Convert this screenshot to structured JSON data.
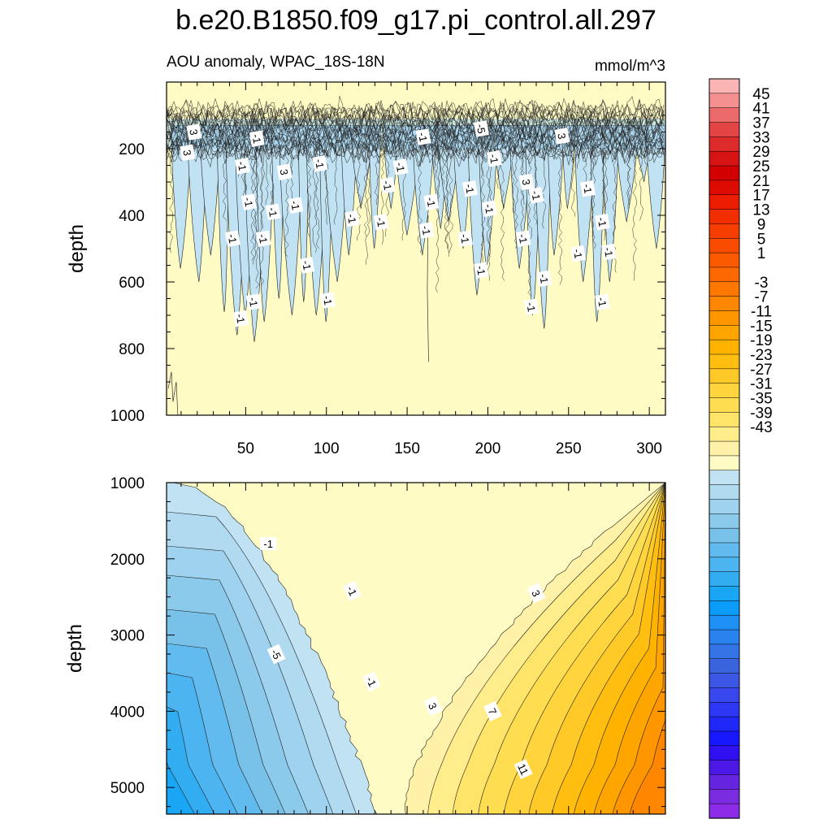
{
  "chart_data": {
    "type": "contour",
    "title": "b.e20.B1850.f09_g17.pi_control.all.297",
    "subtitle_left": "AOU anomaly, WPAC_18S-18N",
    "subtitle_right": "mmol/m^3",
    "panels": [
      {
        "name": "upper",
        "ylabel": "depth",
        "ylim": [
          1000,
          0
        ],
        "xlim": [
          1,
          310
        ],
        "x_ticks": [
          "50",
          "100",
          "150",
          "200",
          "250",
          "300"
        ],
        "y_ticks": [
          "200",
          "400",
          "600",
          "800",
          "1000"
        ],
        "contour_labels": [
          {
            "text": "3",
            "x": 18,
            "y": 150
          },
          {
            "text": "3",
            "x": 14,
            "y": 212
          },
          {
            "text": "-1",
            "x": 57,
            "y": 170
          },
          {
            "text": "-1",
            "x": 48,
            "y": 252
          },
          {
            "text": "3",
            "x": 74,
            "y": 270
          },
          {
            "text": "-1",
            "x": 96,
            "y": 245
          },
          {
            "text": "-1",
            "x": 160,
            "y": 165
          },
          {
            "text": "-5",
            "x": 196,
            "y": 140
          },
          {
            "text": "3",
            "x": 246,
            "y": 162
          },
          {
            "text": "-1",
            "x": 204,
            "y": 230
          },
          {
            "text": "3",
            "x": 224,
            "y": 300
          },
          {
            "text": "-1",
            "x": 146,
            "y": 255
          },
          {
            "text": "-1",
            "x": 138,
            "y": 310
          },
          {
            "text": "-1",
            "x": 52,
            "y": 360
          },
          {
            "text": "-1",
            "x": 81,
            "y": 370
          },
          {
            "text": "-1",
            "x": 67,
            "y": 390
          },
          {
            "text": "-1",
            "x": 116,
            "y": 410
          },
          {
            "text": "-1",
            "x": 134,
            "y": 420
          },
          {
            "text": "-1",
            "x": 165,
            "y": 360
          },
          {
            "text": "-1",
            "x": 189,
            "y": 320
          },
          {
            "text": "-1",
            "x": 201,
            "y": 380
          },
          {
            "text": "-1",
            "x": 230,
            "y": 340
          },
          {
            "text": "-1",
            "x": 262,
            "y": 320
          },
          {
            "text": "-1",
            "x": 271,
            "y": 420
          },
          {
            "text": "-1",
            "x": 162,
            "y": 445
          },
          {
            "text": "-1",
            "x": 42,
            "y": 470
          },
          {
            "text": "-1",
            "x": 61,
            "y": 470
          },
          {
            "text": "-1",
            "x": 186,
            "y": 470
          },
          {
            "text": "-1",
            "x": 222,
            "y": 470
          },
          {
            "text": "-1",
            "x": 256,
            "y": 515
          },
          {
            "text": "-1",
            "x": 275,
            "y": 510
          },
          {
            "text": "-1",
            "x": 88,
            "y": 550
          },
          {
            "text": "-1",
            "x": 196,
            "y": 565
          },
          {
            "text": "-1",
            "x": 235,
            "y": 590
          },
          {
            "text": "-1",
            "x": 55,
            "y": 660
          },
          {
            "text": "-1",
            "x": 101,
            "y": 655
          },
          {
            "text": "-1",
            "x": 227,
            "y": 675
          },
          {
            "text": "-1",
            "x": 271,
            "y": 660
          },
          {
            "text": "-1",
            "x": 47,
            "y": 710
          }
        ]
      },
      {
        "name": "lower",
        "ylabel": "depth",
        "ylim": [
          5350,
          1000
        ],
        "xlim": [
          1,
          310
        ],
        "y_ticks": [
          "1000",
          "2000",
          "3000",
          "4000",
          "5000"
        ],
        "contour_labels": [
          {
            "text": "-1",
            "x": 64,
            "y": 1800
          },
          {
            "text": "-1",
            "x": 116,
            "y": 2420
          },
          {
            "text": "-5",
            "x": 69,
            "y": 3250
          },
          {
            "text": "-1",
            "x": 128,
            "y": 3610
          },
          {
            "text": "3",
            "x": 230,
            "y": 2450
          },
          {
            "text": "3",
            "x": 166,
            "y": 3930
          },
          {
            "text": "7",
            "x": 203,
            "y": 4000
          },
          {
            "text": "11",
            "x": 222,
            "y": 4760
          }
        ]
      }
    ],
    "contour_levels": [
      -43,
      -41,
      -39,
      -37,
      -35,
      -33,
      -31,
      -29,
      -27,
      -25,
      -23,
      -21,
      -19,
      -17,
      -15,
      -13,
      -11,
      -9,
      -7,
      -5,
      -3,
      -1,
      1,
      3,
      5,
      7,
      9,
      11,
      13,
      15,
      17,
      19,
      21,
      23,
      25,
      27,
      29,
      31,
      33,
      35,
      37,
      39,
      41,
      43,
      45
    ],
    "colorbar_labels": [
      "45",
      "41",
      "37",
      "33",
      "29",
      "25",
      "21",
      "17",
      "13",
      "9",
      "5",
      "1",
      "-3",
      "-7",
      "-11",
      "-15",
      "-19",
      "-23",
      "-27",
      "-31",
      "-35",
      "-39",
      "-43"
    ],
    "colorbar_colors": [
      "#fbb4b4",
      "#f49090",
      "#ec6a6a",
      "#e34545",
      "#dd2a2a",
      "#d71414",
      "#d20000",
      "#de0c00",
      "#ec1c00",
      "#f22e00",
      "#f63e00",
      "#f94c00",
      "#fb5a00",
      "#fd6800",
      "#fe7700",
      "#ff8600",
      "#ff9600",
      "#ffa500",
      "#ffb300",
      "#ffbe10",
      "#ffc928",
      "#ffd43c",
      "#ffdd50",
      "#ffe46a",
      "#ffec8a",
      "#fff2a8",
      "#fffbc4",
      "#c0e2f2",
      "#b0daf0",
      "#9ed2ee",
      "#8ccaec",
      "#78c2ea",
      "#62bbee",
      "#4cb4f0",
      "#33adf2",
      "#18a6f5",
      "#0a9cf8",
      "#1e90f6",
      "#2a82ee",
      "#3474e6",
      "#3a64de",
      "#3c56e6",
      "#3848ee",
      "#2e38f4",
      "#1f28f8",
      "#1818ff",
      "#3010f0",
      "#4c18e6",
      "#6424e0",
      "#7a2ce0",
      "#8c2ce8"
    ]
  }
}
